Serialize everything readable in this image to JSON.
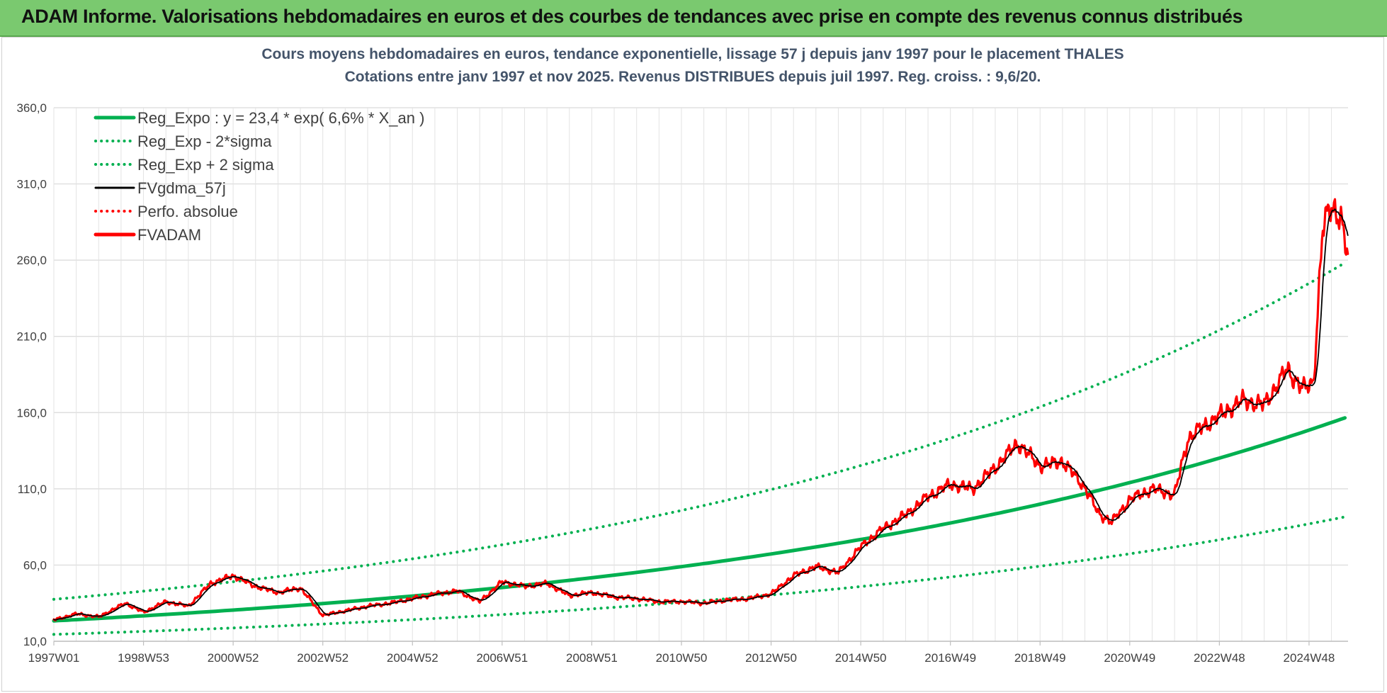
{
  "header": {
    "title": "ADAM Informe. Valorisations hebdomadaires en euros et des courbes de tendances avec prise en compte des revenus connus distribués"
  },
  "chart_data": {
    "type": "line",
    "title_line1": "Cours moyens hebdomadaires en euros, tendance exponentielle, lissage 57 j depuis janv 1997 pour le placement THALES",
    "title_line2": "Cotations entre janv 1997 et nov 2025. Revenus DISTRIBUES depuis juil 1997. Reg. croiss. : 9,6/20.",
    "xlabel": "",
    "ylabel": "",
    "x_range": [
      1997.0,
      2025.87
    ],
    "ylim": [
      10,
      360
    ],
    "y_ticks": [
      "10,0",
      "60,0",
      "110,0",
      "160,0",
      "210,0",
      "260,0",
      "310,0",
      "360,0"
    ],
    "x_ticks": [
      {
        "label": "1997W01",
        "t": 1997.0
      },
      {
        "label": "1998W53",
        "t": 1999.0
      },
      {
        "label": "2000W52",
        "t": 2001.0
      },
      {
        "label": "2002W52",
        "t": 2003.0
      },
      {
        "label": "2004W52",
        "t": 2005.0
      },
      {
        "label": "2006W51",
        "t": 2007.0
      },
      {
        "label": "2008W51",
        "t": 2009.0
      },
      {
        "label": "2010W50",
        "t": 2011.0
      },
      {
        "label": "2012W50",
        "t": 2013.0
      },
      {
        "label": "2014W50",
        "t": 2015.0
      },
      {
        "label": "2016W49",
        "t": 2017.0
      },
      {
        "label": "2018W49",
        "t": 2019.0
      },
      {
        "label": "2020W49",
        "t": 2021.0
      },
      {
        "label": "2022W48",
        "t": 2023.0
      },
      {
        "label": "2024W48",
        "t": 2025.0
      }
    ],
    "grid": true,
    "legend_position": "top-left",
    "series": [
      {
        "name": "Reg_Expo : y = 23,4 * exp( 6,6% *  X_an )",
        "kind": "exp",
        "a": 23.4,
        "r": 0.066,
        "color": "#00b050",
        "style": "solid"
      },
      {
        "name": "Reg_Exp - 2*sigma",
        "kind": "exp",
        "a": 14.5,
        "r": 0.064,
        "color": "#00b050",
        "style": "dotted"
      },
      {
        "name": "Reg_Exp + 2 sigma",
        "kind": "exp",
        "a": 37.5,
        "r": 0.067,
        "color": "#00b050",
        "style": "dotted"
      },
      {
        "name": "FVgdma_57j",
        "kind": "smooth_of_adam",
        "color": "#000000",
        "style": "solid"
      },
      {
        "name": "Perfo. absolue",
        "kind": "none",
        "color": "#ff0000",
        "style": "dotted"
      },
      {
        "name": "FVADAM",
        "kind": "data",
        "color": "#ff0000",
        "style": "solid",
        "x": [
          1997.0,
          1997.5,
          1998.0,
          1998.6,
          1999.0,
          1999.5,
          2000.0,
          2000.5,
          2001.0,
          2001.5,
          2002.0,
          2002.5,
          2003.0,
          2003.5,
          2004.0,
          2004.5,
          2005.0,
          2005.5,
          2006.0,
          2006.5,
          2007.0,
          2007.5,
          2008.0,
          2008.5,
          2009.0,
          2009.5,
          2010.0,
          2010.5,
          2011.0,
          2011.5,
          2012.0,
          2012.5,
          2013.0,
          2013.5,
          2014.0,
          2014.5,
          2015.0,
          2015.5,
          2016.0,
          2016.5,
          2017.0,
          2017.5,
          2018.0,
          2018.5,
          2019.0,
          2019.5,
          2020.0,
          2020.3,
          2020.6,
          2021.0,
          2021.5,
          2022.0,
          2022.3,
          2022.6,
          2023.0,
          2023.5,
          2024.0,
          2024.5,
          2024.9,
          2025.1,
          2025.3,
          2025.5,
          2025.7,
          2025.87
        ],
        "y": [
          24,
          28,
          26,
          35,
          29,
          36,
          33,
          48,
          53,
          46,
          42,
          45,
          27,
          30,
          33,
          35,
          38,
          41,
          43,
          36,
          49,
          46,
          48,
          40,
          42,
          39,
          38,
          36,
          36,
          35,
          37,
          38,
          41,
          53,
          59,
          55,
          72,
          84,
          93,
          105,
          113,
          110,
          124,
          140,
          125,
          128,
          111,
          94,
          88,
          103,
          110,
          106,
          143,
          150,
          158,
          168,
          165,
          188,
          175,
          180,
          280,
          295,
          290,
          260
        ]
      }
    ]
  }
}
